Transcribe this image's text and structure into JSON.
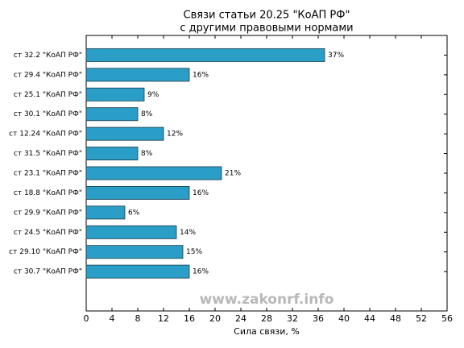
{
  "chart_data": {
    "type": "barh",
    "title": [
      "Связи статьи 20.25 \"КоАП РФ\"",
      "с другими правовыми нормами"
    ],
    "xlabel": "Сила связи, %",
    "watermark": "www.zakonrf.info",
    "categories": [
      "ст 32.2 \"КоАП РФ\"",
      "ст 29.4 \"КоАП РФ\"",
      "ст 25.1 \"КоАП РФ\"",
      "ст 30.1 \"КоАП РФ\"",
      "ст 12.24 \"КоАП РФ\"",
      "ст 31.5 \"КоАП РФ\"",
      "ст 23.1 \"КоАП РФ\"",
      "ст 18.8 \"КоАП РФ\"",
      "ст 29.9 \"КоАП РФ\"",
      "ст 24.5 \"КоАП РФ\"",
      "ст 29.10 \"КоАП РФ\"",
      "ст 30.7 \"КоАП РФ\""
    ],
    "values": [
      37,
      16,
      9,
      8,
      12,
      8,
      21,
      16,
      6,
      14,
      15,
      16
    ],
    "value_labels": [
      "37%",
      "16%",
      "9%",
      "8%",
      "12%",
      "8%",
      "21%",
      "16%",
      "6%",
      "14%",
      "15%",
      "16%"
    ],
    "color": "#2a9ec6",
    "xlim": [
      0,
      56
    ],
    "xticks": [
      0,
      4,
      8,
      12,
      16,
      20,
      24,
      28,
      32,
      36,
      40,
      44,
      48,
      52,
      56
    ]
  }
}
